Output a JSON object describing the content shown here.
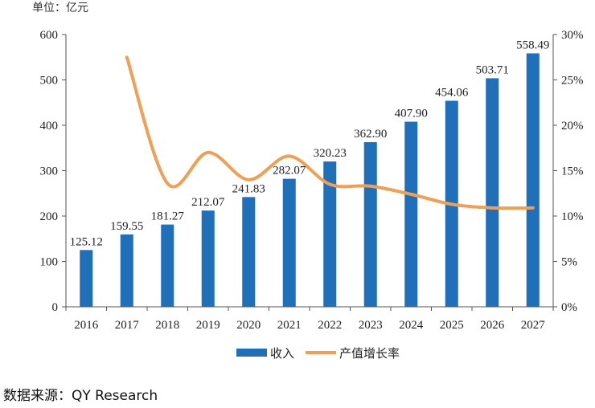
{
  "chart_data": {
    "type": "bar",
    "unit_label": "单位：亿元",
    "categories": [
      "2016",
      "2017",
      "2018",
      "2019",
      "2020",
      "2021",
      "2022",
      "2023",
      "2024",
      "2025",
      "2026",
      "2027"
    ],
    "series": [
      {
        "name": "收入",
        "type": "bar",
        "axis": "left",
        "color": "#1f6fb9",
        "values": [
          125.12,
          159.55,
          181.27,
          212.07,
          241.83,
          282.07,
          320.23,
          362.9,
          407.9,
          454.06,
          503.71,
          558.49
        ],
        "labels": [
          "125.12",
          "159.55",
          "181.27",
          "212.07",
          "241.83",
          "282.07",
          "320.23",
          "362.90",
          "407.90",
          "454.06",
          "503.71",
          "558.49"
        ]
      },
      {
        "name": "产值增长率",
        "type": "line",
        "axis": "right",
        "color": "#f0a053",
        "values": [
          null,
          27.5,
          13.6,
          17.0,
          14.0,
          16.6,
          13.5,
          13.3,
          12.4,
          11.3,
          10.9,
          10.9
        ]
      }
    ],
    "y_left": {
      "min": 0,
      "max": 600,
      "ticks": [
        "0",
        "100",
        "200",
        "300",
        "400",
        "500",
        "600"
      ]
    },
    "y_right": {
      "min": 0,
      "max": 30,
      "ticks": [
        "0%",
        "5%",
        "10%",
        "15%",
        "20%",
        "25%",
        "30%"
      ]
    },
    "legend_position": "bottom-center",
    "grid": false
  },
  "source_note": "数据来源：QY Research"
}
